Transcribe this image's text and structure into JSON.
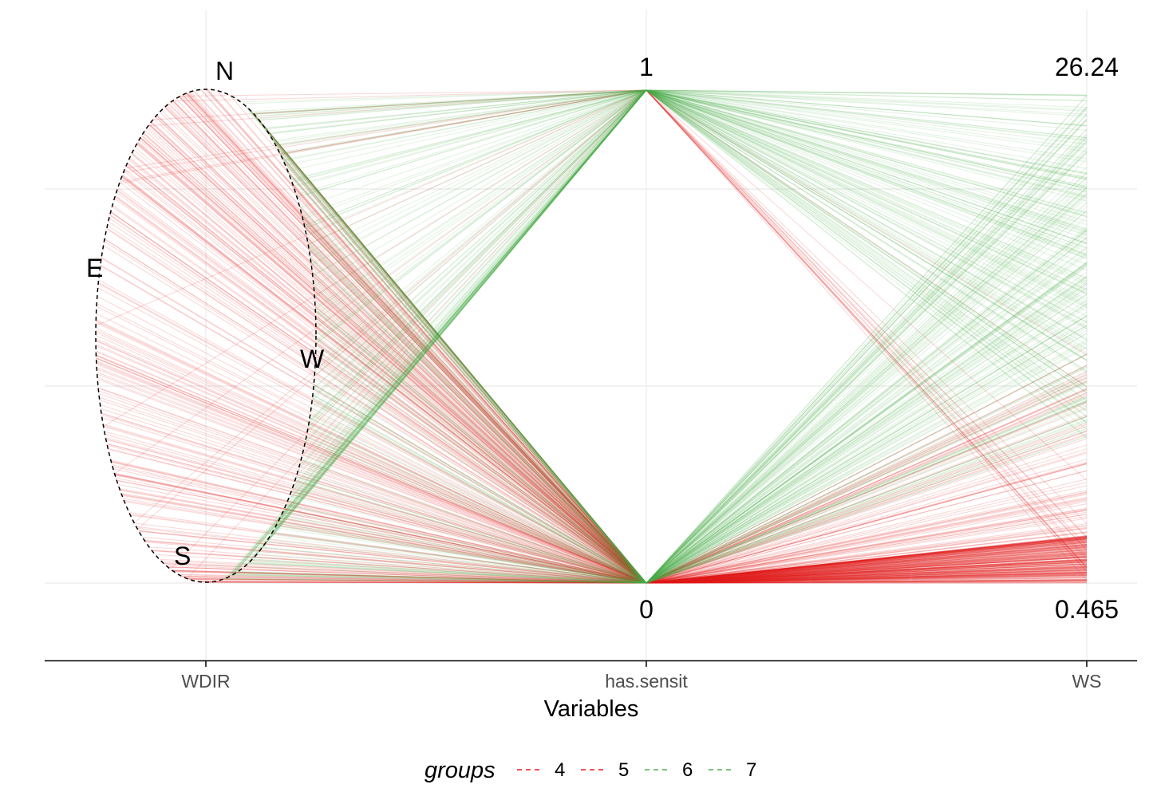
{
  "chart_data": {
    "type": "parallel-coordinates",
    "xlabel": "Variables",
    "variables": [
      "WDIR",
      "has.sensit",
      "WS"
    ],
    "grid": true,
    "legend": {
      "title": "groups",
      "placement": "bottom",
      "entries": [
        {
          "label": "4",
          "color": "#e41a1c"
        },
        {
          "label": "5",
          "color": "#e41a1c"
        },
        {
          "label": "6",
          "color": "#4daf4a"
        },
        {
          "label": "7",
          "color": "#4daf4a"
        }
      ]
    },
    "axes": {
      "WDIR": {
        "type": "circular",
        "labels": [
          "N",
          "E",
          "W",
          "S"
        ]
      },
      "has.sensit": {
        "min_label": "0",
        "max_label": "1",
        "range": [
          0,
          1
        ]
      },
      "WS": {
        "min_label": "0.465",
        "max_label": "26.24",
        "range": [
          0.465,
          26.24
        ]
      }
    },
    "group_colors": {
      "4": "#e41a1c",
      "5": "#e41a1c",
      "6": "#4daf4a",
      "7": "#4daf4a"
    },
    "summary": {
      "red_groups_has_sensit": 0,
      "green_groups_has_sensit": "0 or 1",
      "red_groups_ws_typical": [
        0.465,
        8
      ],
      "green_groups_ws_typical": [
        8,
        26.24
      ]
    }
  }
}
